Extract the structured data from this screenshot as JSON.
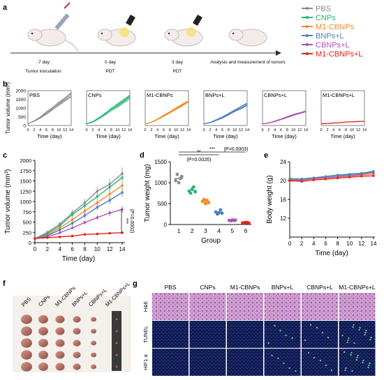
{
  "colors": {
    "PBS": "#8c8c8c",
    "CNPs": "#2bb673",
    "M1-CBNPs": "#f28c28",
    "BNPs+L": "#4a7fc1",
    "CBNPs+L": "#b04fb6",
    "M1-CBNPs+L": "#e2231a"
  },
  "panel_a": {
    "label": "a",
    "timeline": [
      "-7 day",
      "0 day",
      "3 day"
    ],
    "events": [
      "Tumor inoculation",
      "PDT",
      "PDT",
      "Analysis and measurement of tumors"
    ],
    "legend": [
      "PBS",
      "CNPs",
      "M1-CBNPs",
      "BNPs+L",
      "CBNPs+L",
      "M1-CBNPs+L"
    ]
  },
  "panel_b": {
    "label": "b"
  },
  "panel_c": {
    "label": "c"
  },
  "panel_d": {
    "label": "d"
  },
  "panel_e": {
    "label": "e"
  },
  "panel_f": {
    "label": "f",
    "columns": [
      "PBS",
      "CNPs",
      "M1-CBNPs",
      "BNPs+L",
      "CBNPs+L",
      "M1-CBNPs+L"
    ]
  },
  "panel_g": {
    "label": "g",
    "columns": [
      "PBS",
      "CNPs",
      "M1-CBNPs",
      "BNPs+L",
      "CBNPs+L",
      "M1-CBNPs+L"
    ],
    "rows": [
      "H&E",
      "TUNEL",
      "HIF1 α"
    ]
  },
  "chart_data": [
    {
      "panel": "b",
      "type": "line",
      "x": [
        0,
        2,
        4,
        6,
        8,
        10,
        12,
        14
      ],
      "ylabel": "Tumor volume (mm³)",
      "xlabel": "Time (day)",
      "ylim": [
        0,
        2000
      ],
      "yticks": [
        0,
        500,
        1000,
        1500,
        2000
      ],
      "xticks": [
        0,
        2,
        4,
        6,
        8,
        10,
        12,
        14
      ],
      "panels": [
        {
          "name": "PBS",
          "series": [
            [
              100,
              250,
              450,
              700,
              950,
              1250,
              1500,
              1800
            ],
            [
              110,
              230,
              420,
              650,
              900,
              1200,
              1450,
              1700
            ],
            [
              90,
              260,
              480,
              750,
              1000,
              1300,
              1550,
              1850
            ],
            [
              120,
              240,
              430,
              680,
              920,
              1150,
              1400,
              1650
            ],
            [
              100,
              270,
              500,
              800,
              1050,
              1350,
              1600,
              1900
            ]
          ]
        },
        {
          "name": "CNPs",
          "series": [
            [
              100,
              200,
              400,
              650,
              900,
              1100,
              1350,
              1600
            ],
            [
              110,
              220,
              450,
              700,
              1000,
              1200,
              1450,
              1700
            ],
            [
              90,
              180,
              380,
              600,
              850,
              1050,
              1300,
              1500
            ],
            [
              100,
              210,
              420,
              720,
              950,
              1150,
              1400,
              1650
            ],
            [
              120,
              230,
              460,
              680,
              980,
              1250,
              1500,
              1750
            ]
          ]
        },
        {
          "name": "M1-CBNPs",
          "series": [
            [
              100,
              180,
              350,
              550,
              750,
              950,
              1150,
              1380
            ],
            [
              110,
              190,
              370,
              580,
              780,
              1000,
              1200,
              1400
            ],
            [
              90,
              170,
              340,
              520,
              720,
              920,
              1120,
              1350
            ],
            [
              100,
              200,
              380,
              600,
              800,
              1020,
              1230,
              1420
            ],
            [
              105,
              185,
              360,
              560,
              760,
              980,
              1180,
              1390
            ]
          ]
        },
        {
          "name": "BNPs+L",
          "series": [
            [
              100,
              160,
              300,
              450,
              650,
              850,
              1000,
              1200
            ],
            [
              110,
              170,
              320,
              480,
              680,
              880,
              1050,
              1250
            ],
            [
              90,
              150,
              280,
              420,
              600,
              800,
              950,
              1150
            ],
            [
              100,
              180,
              340,
              500,
              700,
              900,
              1100,
              1300
            ],
            [
              105,
              165,
              310,
              460,
              640,
              830,
              980,
              1180
            ]
          ]
        },
        {
          "name": "CBNPs+L",
          "series": [
            [
              100,
              140,
              230,
              350,
              480,
              600,
              700,
              800
            ],
            [
              110,
              150,
              250,
              370,
              500,
              620,
              720,
              850
            ],
            [
              90,
              130,
              220,
              330,
              450,
              570,
              680,
              780
            ],
            [
              100,
              160,
              260,
              380,
              520,
              640,
              740,
              830
            ],
            [
              105,
              145,
              240,
              360,
              490,
              610,
              710,
              810
            ]
          ]
        },
        {
          "name": "M1-CBNPs+L",
          "series": [
            [
              100,
              120,
              140,
              160,
              200,
              210,
              230,
              240
            ],
            [
              110,
              130,
              150,
              170,
              210,
              220,
              240,
              250
            ],
            [
              90,
              110,
              130,
              150,
              190,
              200,
              220,
              230
            ],
            [
              100,
              125,
              145,
              165,
              205,
              215,
              235,
              245
            ],
            [
              105,
              115,
              135,
              155,
              195,
              205,
              225,
              235
            ]
          ]
        }
      ]
    },
    {
      "panel": "c",
      "type": "line",
      "x": [
        0,
        2,
        4,
        6,
        8,
        10,
        12,
        14
      ],
      "xlabel": "Time (day)",
      "ylabel": "Tumor volume (mm³)",
      "ylim": [
        0,
        2000
      ],
      "yticks": [
        0,
        250,
        500,
        750,
        1000,
        1250,
        1500,
        1750,
        2000
      ],
      "xticks": [
        0,
        2,
        4,
        6,
        8,
        10,
        12,
        14
      ],
      "series": [
        {
          "name": "PBS",
          "values": [
            100,
            250,
            450,
            720,
            970,
            1250,
            1420,
            1680
          ],
          "err": [
            20,
            40,
            60,
            80,
            100,
            120,
            140,
            150
          ]
        },
        {
          "name": "CNPs",
          "values": [
            100,
            220,
            410,
            680,
            900,
            1120,
            1350,
            1580
          ],
          "err": [
            20,
            40,
            60,
            80,
            90,
            110,
            130,
            140
          ]
        },
        {
          "name": "M1-CBNPs",
          "values": [
            100,
            190,
            360,
            560,
            770,
            970,
            1180,
            1390
          ],
          "err": [
            20,
            30,
            50,
            60,
            80,
            90,
            100,
            110
          ]
        },
        {
          "name": "BNPs+L",
          "values": [
            100,
            170,
            310,
            470,
            660,
            860,
            1030,
            1220
          ],
          "err": [
            20,
            30,
            40,
            60,
            70,
            80,
            90,
            100
          ]
        },
        {
          "name": "CBNPs+L",
          "values": [
            100,
            140,
            240,
            360,
            490,
            610,
            720,
            810
          ],
          "err": [
            15,
            25,
            30,
            40,
            50,
            60,
            70,
            80
          ]
        },
        {
          "name": "M1-CBNPs+L",
          "values": [
            100,
            120,
            140,
            160,
            200,
            210,
            230,
            240
          ],
          "err": [
            10,
            10,
            15,
            15,
            20,
            20,
            20,
            25
          ]
        }
      ],
      "annotation": "***",
      "pvalue": "(P=0.0002)"
    },
    {
      "panel": "d",
      "type": "scatter",
      "xlabel": "Group",
      "ylabel": "Tumor weight (mg)",
      "ylim": [
        0,
        1500
      ],
      "yticks": [
        0,
        500,
        1000,
        1500
      ],
      "categories": [
        "1",
        "2",
        "3",
        "4",
        "5",
        "6"
      ],
      "points": [
        [
          1050,
          1200,
          1000,
          1100,
          1150
        ],
        [
          800,
          750,
          850,
          900,
          780
        ],
        [
          550,
          600,
          500,
          580,
          520
        ],
        [
          300,
          250,
          280,
          350,
          270
        ],
        [
          100,
          90,
          110,
          95,
          105
        ],
        [
          40,
          30,
          50,
          45,
          35
        ]
      ],
      "brackets": [
        {
          "from": "1",
          "to": "4",
          "text": "**",
          "pvalue": "(P=0.0026)"
        },
        {
          "from": "1",
          "to": "6",
          "text": "***",
          "pvalue": "(P=0.0003)"
        }
      ]
    },
    {
      "panel": "e",
      "type": "line",
      "x": [
        0,
        2,
        4,
        6,
        8,
        10,
        12,
        14
      ],
      "xlabel": "Time (day)",
      "ylabel": "Body weight (g)",
      "ylim": [
        8,
        24
      ],
      "yticks": [
        12,
        16,
        20,
        24
      ],
      "xticks": [
        0,
        2,
        4,
        6,
        8,
        10,
        12,
        14
      ],
      "series": [
        {
          "name": "PBS",
          "values": [
            20,
            20.2,
            20.5,
            20.8,
            21,
            21.2,
            21.5,
            21.8
          ]
        },
        {
          "name": "CNPs",
          "values": [
            20.5,
            20.3,
            20.6,
            20.9,
            21.2,
            21.4,
            21.6,
            22
          ]
        },
        {
          "name": "M1-CBNPs",
          "values": [
            19.8,
            20.1,
            20.3,
            20.5,
            20.7,
            20.9,
            21.1,
            21.3
          ]
        },
        {
          "name": "BNPs+L",
          "values": [
            20.1,
            20.4,
            20.6,
            20.9,
            21.1,
            21.3,
            21.5,
            21.9
          ]
        },
        {
          "name": "CBNPs+L",
          "values": [
            20.3,
            20,
            20.4,
            20.6,
            20.8,
            21,
            21.3,
            21.6
          ]
        },
        {
          "name": "M1-CBNPs+L",
          "values": [
            20,
            19.8,
            20.1,
            20.3,
            20.5,
            20.7,
            20.9,
            21
          ]
        }
      ]
    }
  ]
}
